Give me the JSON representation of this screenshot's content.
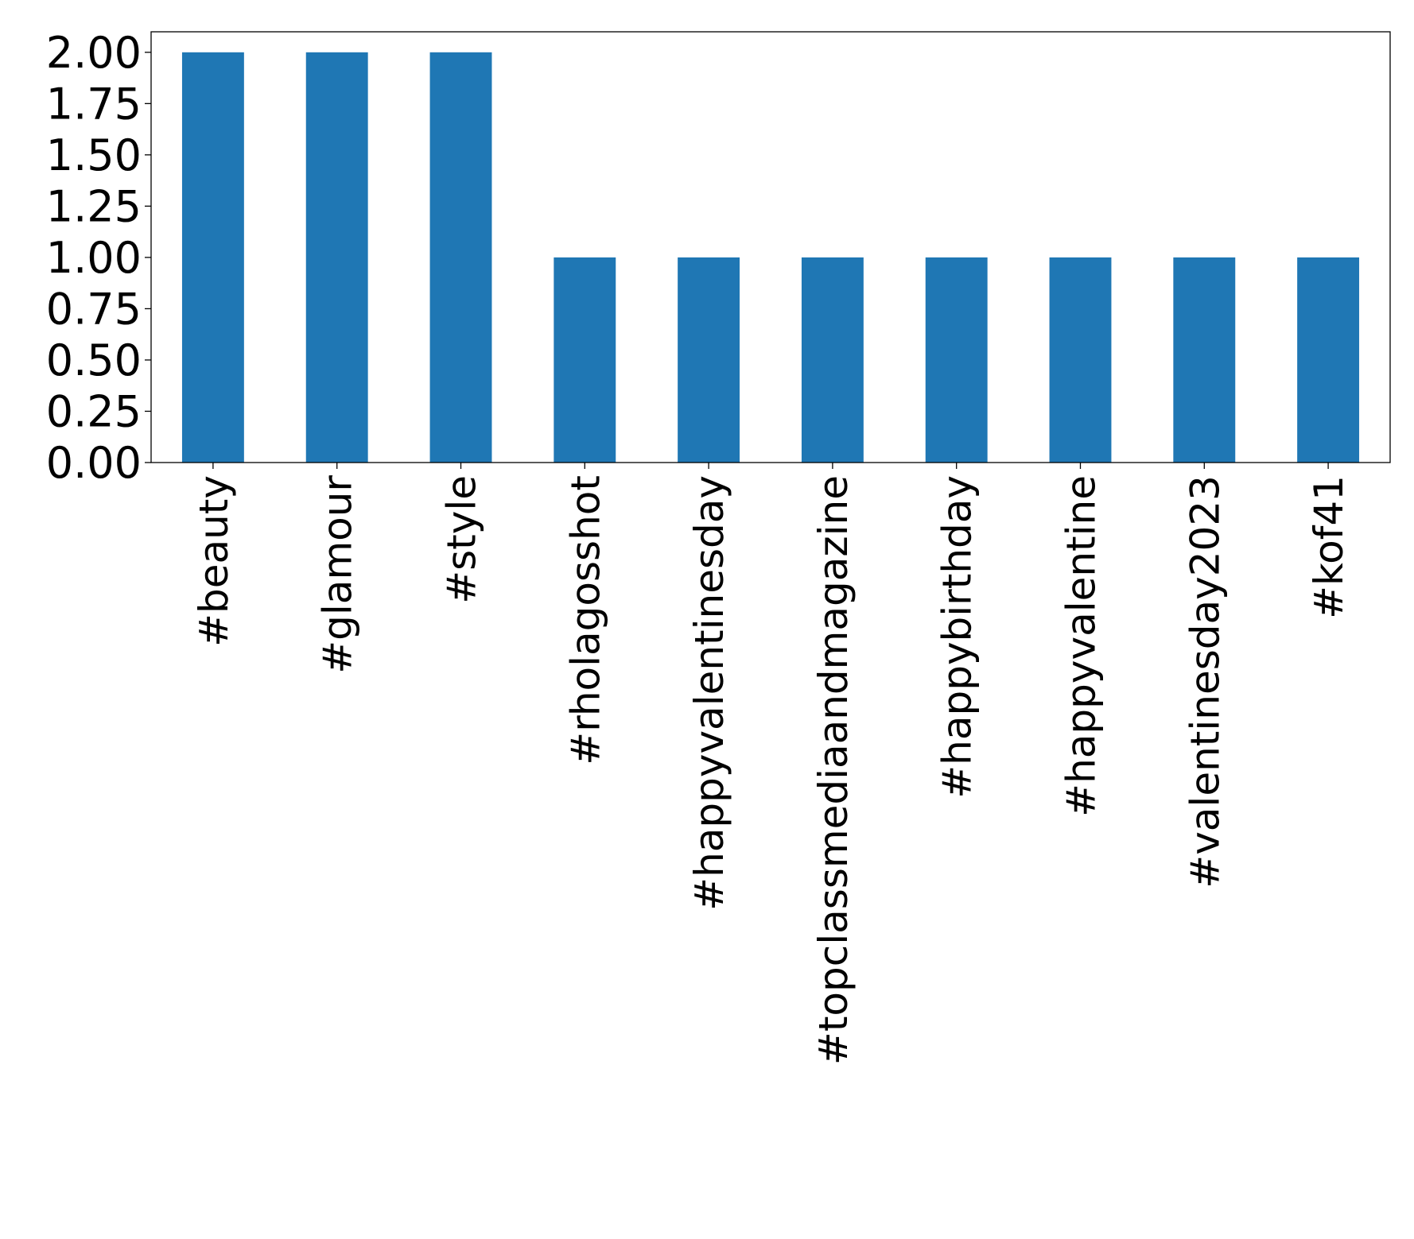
{
  "chart_data": {
    "type": "bar",
    "title": "",
    "xlabel": "",
    "ylabel": "",
    "categories": [
      "#beauty",
      "#glamour",
      "#style",
      "#rholagosshot",
      "#happyvalentinesday",
      "#topclassmediaandmagazine",
      "#happybirthday",
      "#happyvalentine",
      "#valentinesday2023",
      "#kof41"
    ],
    "values": [
      2,
      2,
      2,
      1,
      1,
      1,
      1,
      1,
      1,
      1
    ],
    "ylim": [
      0,
      2.1
    ],
    "yticks": [
      "0.00",
      "0.25",
      "0.50",
      "0.75",
      "1.00",
      "1.25",
      "1.50",
      "1.75",
      "2.00"
    ],
    "ytick_values": [
      0,
      0.25,
      0.5,
      0.75,
      1.0,
      1.25,
      1.5,
      1.75,
      2.0
    ],
    "grid": false,
    "legend": "none",
    "bar_color": "#1f77b4"
  }
}
